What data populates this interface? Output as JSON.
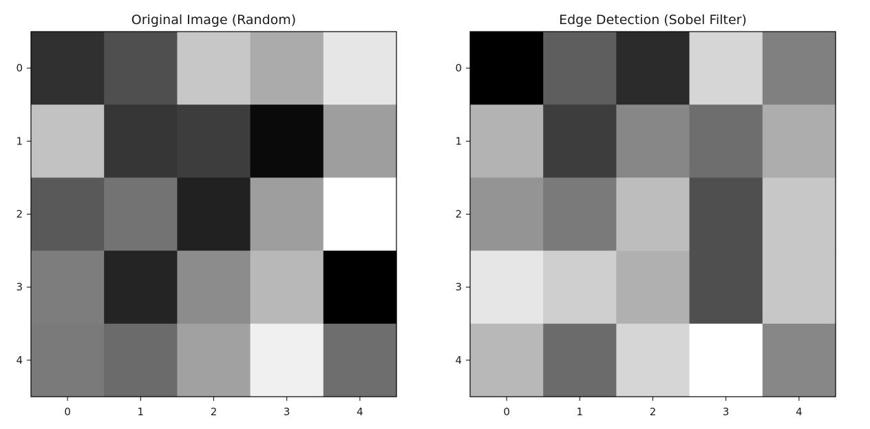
{
  "chart_data": [
    {
      "type": "heatmap",
      "title": "Original Image (Random)",
      "colormap": "gray",
      "x_ticks": [
        "0",
        "1",
        "2",
        "3",
        "4"
      ],
      "y_ticks": [
        "0",
        "1",
        "2",
        "3",
        "4"
      ],
      "values": [
        [
          0.19,
          0.31,
          0.78,
          0.67,
          0.9
        ],
        [
          0.76,
          0.21,
          0.24,
          0.04,
          0.62
        ],
        [
          0.35,
          0.45,
          0.13,
          0.62,
          1.0
        ],
        [
          0.49,
          0.14,
          0.55,
          0.72,
          0.0
        ],
        [
          0.48,
          0.42,
          0.63,
          0.94,
          0.43
        ]
      ]
    },
    {
      "type": "heatmap",
      "title": "Edge Detection (Sobel Filter)",
      "colormap": "gray",
      "x_ticks": [
        "0",
        "1",
        "2",
        "3",
        "4"
      ],
      "y_ticks": [
        "0",
        "1",
        "2",
        "3",
        "4"
      ],
      "values": [
        [
          0.0,
          0.37,
          0.17,
          0.84,
          0.5
        ],
        [
          0.7,
          0.24,
          0.53,
          0.43,
          0.68
        ],
        [
          0.58,
          0.48,
          0.74,
          0.31,
          0.78
        ],
        [
          0.9,
          0.81,
          0.69,
          0.31,
          0.78
        ],
        [
          0.72,
          0.42,
          0.84,
          1.0,
          0.53
        ]
      ]
    }
  ]
}
